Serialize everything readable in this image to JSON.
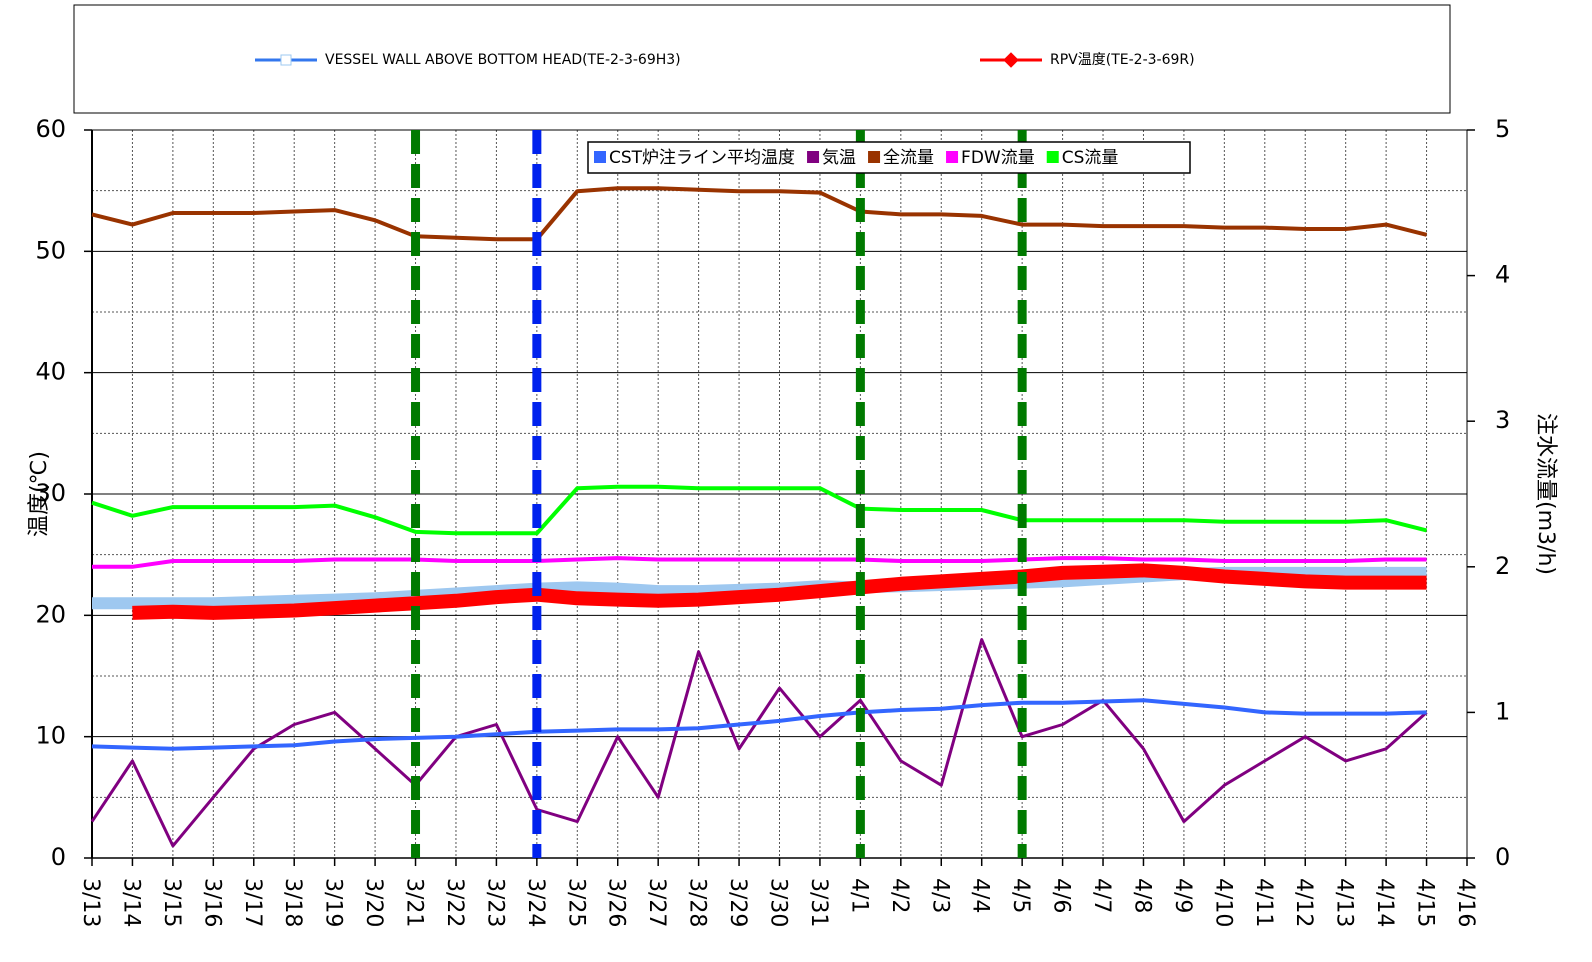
{
  "chart_data": {
    "type": "line",
    "categories": [
      "3/13",
      "3/14",
      "3/15",
      "3/16",
      "3/17",
      "3/18",
      "3/19",
      "3/20",
      "3/21",
      "3/22",
      "3/23",
      "3/24",
      "3/25",
      "3/26",
      "3/27",
      "3/28",
      "3/29",
      "3/30",
      "3/31",
      "4/1",
      "4/2",
      "4/3",
      "4/4",
      "4/5",
      "4/6",
      "4/7",
      "4/8",
      "4/9",
      "4/10",
      "4/11",
      "4/12",
      "4/13",
      "4/14",
      "4/15",
      "4/16"
    ],
    "ylabel": "温度(℃)",
    "y2label": "注水流量(m3/h)",
    "ylim": [
      0,
      60
    ],
    "yticks": [
      0,
      10,
      20,
      30,
      40,
      50,
      60
    ],
    "yminor": [
      5,
      15,
      25,
      35,
      45,
      55
    ],
    "y2lim": [
      0,
      5
    ],
    "y2ticks": [
      0,
      1,
      2,
      3,
      4,
      5
    ],
    "grid": true,
    "vlines": [
      {
        "x": "3/21",
        "color": "#007a00"
      },
      {
        "x": "3/24",
        "color": "#0022ee"
      },
      {
        "x": "4/1",
        "color": "#007a00"
      },
      {
        "x": "4/5",
        "color": "#007a00"
      }
    ],
    "series": [
      {
        "name": "VESSEL WALL ABOVE BOTTOM HEAD(TE-2-3-69H3)",
        "color": "#9ec8f0",
        "legend": "top",
        "width": 12,
        "values": [
          21.0,
          21.0,
          21.0,
          21.0,
          21.1,
          21.2,
          21.3,
          21.4,
          21.6,
          21.8,
          22.0,
          22.2,
          22.3,
          22.2,
          22.0,
          22.0,
          22.1,
          22.2,
          22.4,
          22.3,
          22.4,
          22.5,
          22.6,
          22.7,
          22.8,
          23.0,
          23.2,
          23.4,
          23.5,
          23.5,
          23.5,
          23.5,
          23.5,
          23.5,
          null
        ]
      },
      {
        "name": "RPV温度(TE-2-3-69R)",
        "color": "#ff0000",
        "legend": "top",
        "width": 14,
        "values": [
          null,
          20.2,
          20.3,
          20.2,
          20.3,
          20.4,
          20.6,
          20.8,
          21.0,
          21.2,
          21.5,
          21.7,
          21.4,
          21.3,
          21.2,
          21.3,
          21.5,
          21.7,
          22.0,
          22.3,
          22.6,
          22.8,
          23.0,
          23.2,
          23.5,
          23.6,
          23.7,
          23.5,
          23.2,
          23.0,
          22.8,
          22.7,
          22.7,
          22.7,
          null
        ]
      },
      {
        "name": "CST炉注ライン平均温度",
        "color": "#3366ff",
        "legend": "inner",
        "width": 4,
        "values": [
          9.2,
          9.1,
          9.0,
          9.1,
          9.2,
          9.3,
          9.6,
          9.8,
          9.9,
          10.0,
          10.2,
          10.4,
          10.5,
          10.6,
          10.6,
          10.7,
          11.0,
          11.3,
          11.7,
          12.0,
          12.2,
          12.3,
          12.6,
          12.8,
          12.8,
          12.9,
          13.0,
          12.7,
          12.4,
          12.0,
          11.9,
          11.9,
          11.9,
          12.0,
          null
        ]
      },
      {
        "name": "気温",
        "color": "#800080",
        "legend": "inner",
        "width": 3,
        "values": [
          3,
          8,
          1,
          5,
          9,
          11,
          12,
          9,
          6,
          10,
          11,
          4,
          3,
          10,
          5,
          17,
          9,
          14,
          10,
          13,
          8,
          6,
          18,
          10,
          11,
          13,
          9,
          3,
          6,
          8,
          10,
          8,
          9,
          12,
          null
        ]
      },
      {
        "name": "全流量",
        "color": "#993300",
        "legend": "inner",
        "width": 4,
        "axis": "y2",
        "values": [
          4.42,
          4.35,
          4.43,
          4.43,
          4.43,
          4.44,
          4.45,
          4.38,
          4.27,
          4.26,
          4.25,
          4.25,
          4.58,
          4.6,
          4.6,
          4.59,
          4.58,
          4.58,
          4.57,
          4.44,
          4.42,
          4.42,
          4.41,
          4.35,
          4.35,
          4.34,
          4.34,
          4.34,
          4.33,
          4.33,
          4.32,
          4.32,
          4.35,
          4.28,
          null
        ]
      },
      {
        "name": "FDW流量",
        "color": "#ff00ff",
        "legend": "inner",
        "width": 4,
        "axis": "y2",
        "values": [
          2.0,
          2.0,
          2.04,
          2.04,
          2.04,
          2.04,
          2.05,
          2.05,
          2.05,
          2.04,
          2.04,
          2.04,
          2.05,
          2.06,
          2.05,
          2.05,
          2.05,
          2.05,
          2.05,
          2.05,
          2.04,
          2.04,
          2.04,
          2.05,
          2.06,
          2.06,
          2.05,
          2.05,
          2.04,
          2.04,
          2.04,
          2.04,
          2.05,
          2.05,
          null
        ]
      },
      {
        "name": "CS流量",
        "color": "#00ff00",
        "legend": "inner",
        "width": 4,
        "axis": "y2",
        "values": [
          2.44,
          2.35,
          2.41,
          2.41,
          2.41,
          2.41,
          2.42,
          2.34,
          2.24,
          2.23,
          2.23,
          2.23,
          2.54,
          2.55,
          2.55,
          2.54,
          2.54,
          2.54,
          2.54,
          2.4,
          2.39,
          2.39,
          2.39,
          2.32,
          2.32,
          2.32,
          2.32,
          2.32,
          2.31,
          2.31,
          2.31,
          2.31,
          2.32,
          2.25,
          null
        ]
      }
    ]
  }
}
